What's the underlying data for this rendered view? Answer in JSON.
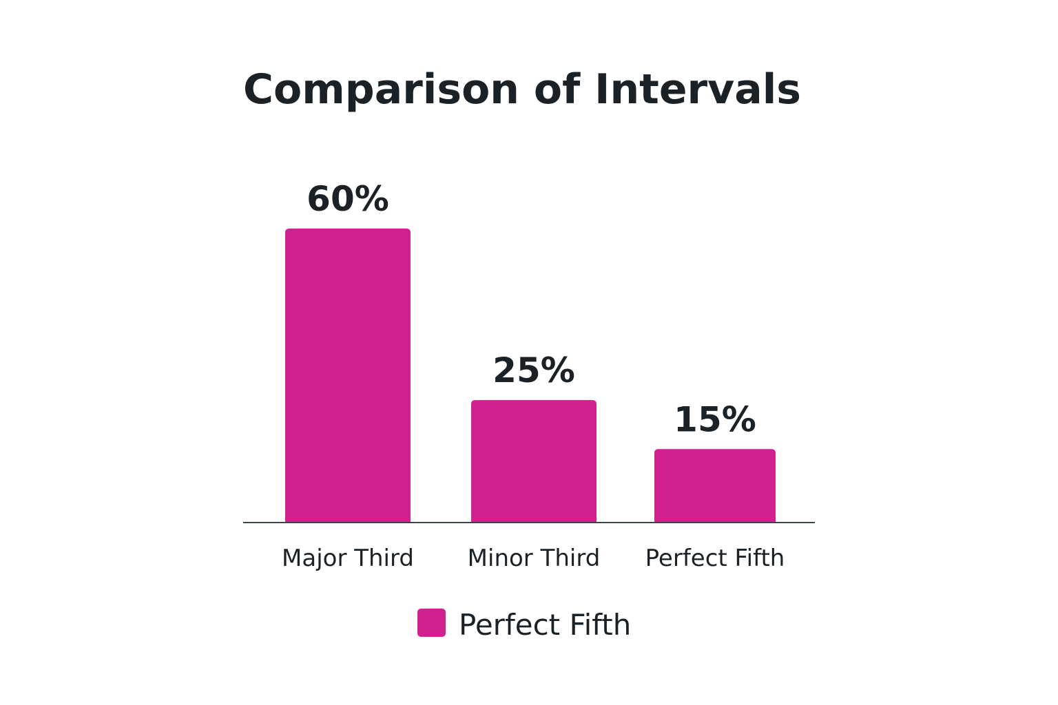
{
  "chart_data": {
    "type": "bar",
    "title": "Comparison of Intervals",
    "categories": [
      "Major Third",
      "Minor Third",
      "Perfect Fifth"
    ],
    "values": [
      60,
      25,
      15
    ],
    "value_labels": [
      "60%",
      "25%",
      "15%"
    ],
    "legend": {
      "position": "bottom",
      "entries": [
        {
          "label": "Perfect Fifth",
          "color": "#cf228e"
        }
      ]
    },
    "ylim": [
      0,
      60
    ],
    "grid": false,
    "colors": {
      "bar": "#cf228e",
      "axis": "#3c4448",
      "text": "#1b2227"
    }
  }
}
